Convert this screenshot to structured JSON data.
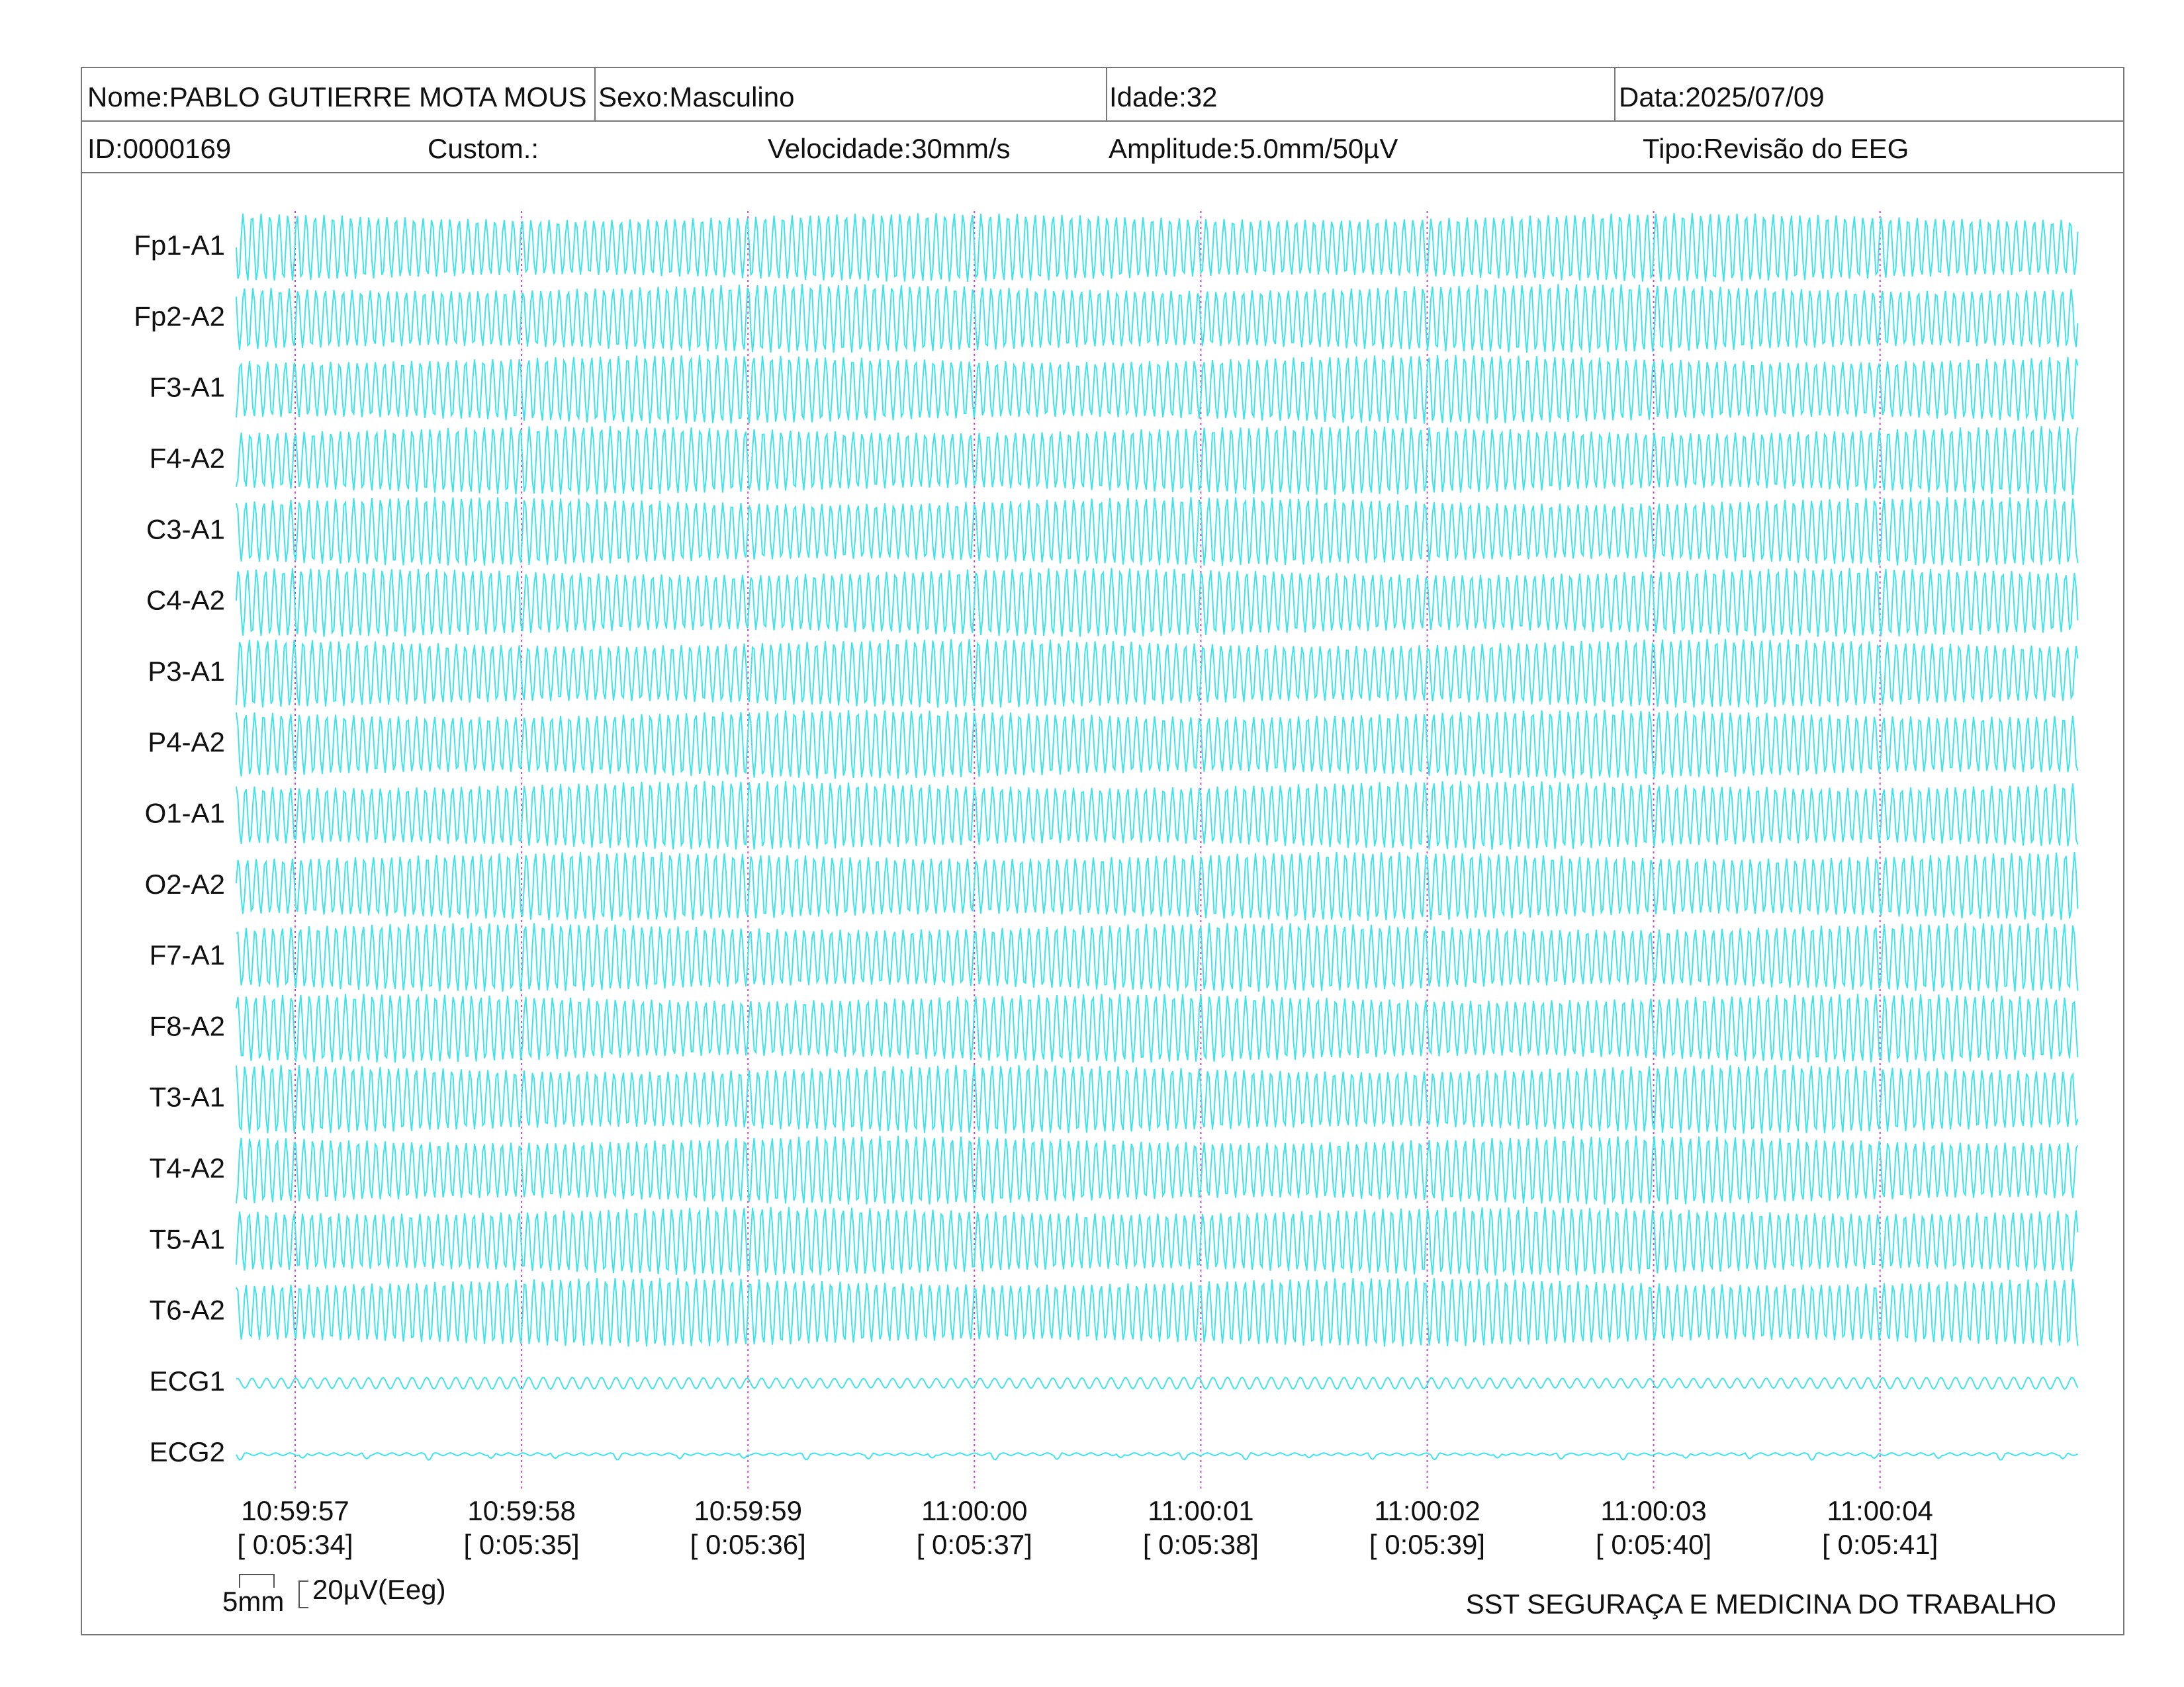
{
  "header": {
    "row1": [
      "Nome:PABLO GUTIERRE MOTA MOUS",
      "Sexo:Masculino",
      "Idade:32",
      "Data:2025/07/09"
    ],
    "row2": [
      "ID:0000169",
      "Custom.:",
      "Velocidade:30mm/s",
      "Amplitude:5.0mm/50µV",
      "Tipo:Revisão do EEG"
    ]
  },
  "channels": [
    "Fp1-A1",
    "Fp2-A2",
    "F3-A1",
    "F4-A2",
    "C3-A1",
    "C4-A2",
    "P3-A1",
    "P4-A2",
    "O1-A1",
    "O2-A2",
    "F7-A1",
    "F8-A2",
    "T3-A1",
    "T4-A2",
    "T5-A1",
    "T6-A2",
    "ECG1",
    "ECG2"
  ],
  "time_marks": [
    {
      "time": "10:59:57",
      "elapsed": "[ 0:05:34]"
    },
    {
      "time": "10:59:58",
      "elapsed": "[ 0:05:35]"
    },
    {
      "time": "10:59:59",
      "elapsed": "[ 0:05:36]"
    },
    {
      "time": "11:00:00",
      "elapsed": "[ 0:05:37]"
    },
    {
      "time": "11:00:01",
      "elapsed": "[ 0:05:38]"
    },
    {
      "time": "11:00:02",
      "elapsed": "[ 0:05:39]"
    },
    {
      "time": "11:00:03",
      "elapsed": "[ 0:05:40]"
    },
    {
      "time": "11:00:04",
      "elapsed": "[ 0:05:41]"
    }
  ],
  "scale": {
    "length": "5mm",
    "amplitude": "20µV(Eeg)"
  },
  "footer": "SST SEGURAÇA E MEDICINA DO TRABALHO"
}
